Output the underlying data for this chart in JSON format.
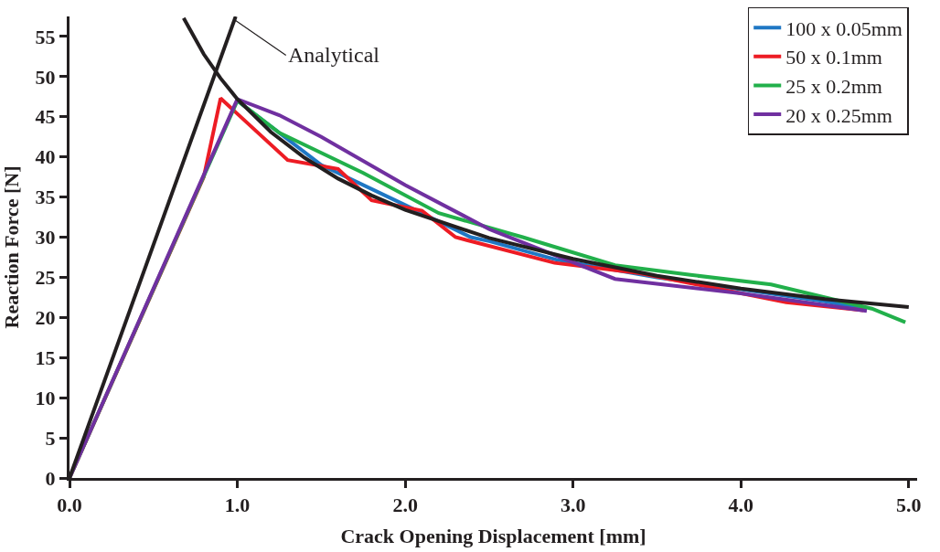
{
  "chart_data": {
    "type": "line",
    "xlabel": "Crack Opening Displacement [mm]",
    "ylabel": "Reaction Force [N]",
    "xlim": [
      0,
      5.05
    ],
    "ylim": [
      0,
      57.5
    ],
    "xticks": [
      {
        "value": 0,
        "label": "0.0"
      },
      {
        "value": 1,
        "label": "1.0"
      },
      {
        "value": 2,
        "label": "2.0"
      },
      {
        "value": 3,
        "label": "3.0"
      },
      {
        "value": 4,
        "label": "4.0"
      },
      {
        "value": 5,
        "label": "5.0"
      }
    ],
    "yticks": [
      0,
      5,
      10,
      15,
      20,
      25,
      30,
      35,
      40,
      45,
      50,
      55
    ],
    "legend": "top right",
    "marker": "none",
    "line_style": "solid",
    "annotations": [
      {
        "text": "Analytical",
        "x": 0.99,
        "y": 57
      }
    ],
    "series": [
      {
        "name": "100 x 0.05mm",
        "color": "#1f77c4",
        "x": [
          1.0,
          1.25,
          1.5,
          2.0,
          2.39,
          2.5,
          2.9,
          3.5,
          4.0,
          4.5,
          4.75
        ],
        "values": [
          47,
          43,
          39,
          34,
          30,
          29.5,
          27.2,
          25,
          23.5,
          22,
          21
        ]
      },
      {
        "name": "50 x 0.1mm",
        "color": "#ed1c24",
        "x": [
          0,
          0.8,
          0.9,
          1.3,
          1.6,
          1.8,
          2.1,
          2.3,
          2.89,
          3.4,
          4.27,
          4.73
        ],
        "values": [
          0,
          37.5,
          47.3,
          39.6,
          38.5,
          34.6,
          33.3,
          30,
          26.8,
          25.5,
          21.9,
          20.9
        ]
      },
      {
        "name": "25 x 0.2mm",
        "color": "#22b04b",
        "x": [
          0,
          1.0,
          1.25,
          1.75,
          2.2,
          2.7,
          3.25,
          3.7,
          4.18,
          4.78,
          4.98
        ],
        "values": [
          0,
          47,
          43,
          38,
          33,
          30,
          26.5,
          25.3,
          24.1,
          21.1,
          19.4
        ]
      },
      {
        "name": "20 x 0.25mm",
        "color": "#7030a0",
        "x": [
          0,
          1.0,
          1.25,
          1.5,
          2.0,
          2.5,
          3.25,
          4.0,
          4.75
        ],
        "values": [
          0,
          47.2,
          45.2,
          42.5,
          36.5,
          31,
          24.8,
          23,
          20.8
        ]
      },
      {
        "color": "#231f20",
        "x": [
          0,
          0.99
        ],
        "values": [
          0,
          57.5
        ]
      },
      {
        "color": "#231f20",
        "x": [
          0.68,
          0.8,
          0.9,
          1.0,
          1.2,
          1.4,
          1.6,
          1.8,
          2.0,
          2.5,
          3.0,
          3.5,
          4.0,
          4.5,
          5.0
        ],
        "values": [
          57.3,
          52.8,
          49.8,
          47.2,
          43.1,
          39.9,
          37.3,
          35.2,
          33.4,
          29.9,
          27.3,
          25.2,
          23.6,
          22.3,
          21.3
        ]
      }
    ]
  }
}
